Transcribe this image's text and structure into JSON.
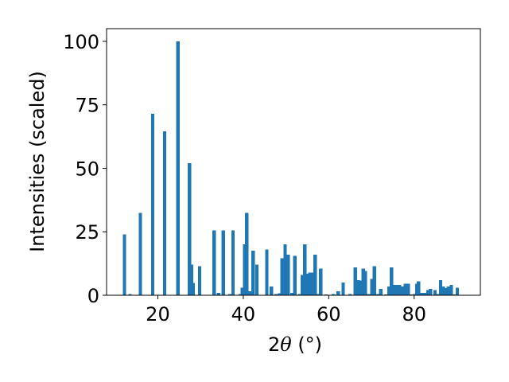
{
  "chart_data": {
    "type": "bar",
    "title": "",
    "xlabel_prefix": "2",
    "xlabel_symbol": "θ",
    "xlabel_suffix": " (°)",
    "ylabel": "Intensities (scaled)",
    "xlim": [
      8,
      95.5
    ],
    "ylim": [
      0,
      105
    ],
    "xticks": [
      20,
      40,
      60,
      80
    ],
    "yticks": [
      0,
      25,
      50,
      75,
      100
    ],
    "xtick_labels": [
      "20",
      "40",
      "60",
      "80"
    ],
    "ytick_labels": [
      "0",
      "25",
      "50",
      "75",
      "100"
    ],
    "bar_width": 0.8,
    "color": "#1f77b4",
    "grid": false,
    "x": [
      12.2,
      13.5,
      15.9,
      18.8,
      21.6,
      24.7,
      25.4,
      27.4,
      27.9,
      28.3,
      29.8,
      33.2,
      34.2,
      35.3,
      36.9,
      37.6,
      39.3,
      39.8,
      40.3,
      40.8,
      41.6,
      42.3,
      43.2,
      45.5,
      46.6,
      47.7,
      48.5,
      49.1,
      49.8,
      50.5,
      51.4,
      52.1,
      53.2,
      53.8,
      54.4,
      55.0,
      55.6,
      56.2,
      56.8,
      57.6,
      58.1,
      59.4,
      61.1,
      62.2,
      63.4,
      65.0,
      66.2,
      66.9,
      67.6,
      68.1,
      68.6,
      69.3,
      70.1,
      70.7,
      71.5,
      72.2,
      73.4,
      74.1,
      74.7,
      75.2,
      75.9,
      76.6,
      77.2,
      77.9,
      78.6,
      79.3,
      80.1,
      80.6,
      81.0,
      81.7,
      82.4,
      83.2,
      83.8,
      84.9,
      85.5,
      86.2,
      86.8,
      87.4,
      88.0,
      88.7,
      89.5,
      90.1
    ],
    "values": [
      24,
      0.5,
      32.5,
      71.5,
      64.5,
      100,
      0.2,
      52,
      12,
      4.8,
      11.5,
      25.5,
      1,
      25.5,
      0.5,
      25.5,
      0.4,
      3,
      20,
      32.5,
      1.5,
      17.5,
      12,
      18,
      3.5,
      0.4,
      0.8,
      14.5,
      20,
      16,
      1,
      15.5,
      0.5,
      8,
      20,
      8.5,
      9,
      9,
      16,
      0.5,
      10.5,
      0.3,
      0.4,
      1.5,
      5,
      0.5,
      11,
      6,
      5.8,
      10.5,
      9.5,
      0.4,
      6.5,
      11.5,
      0.5,
      2.5,
      0.3,
      3.5,
      11,
      4,
      4,
      4,
      3.5,
      4.5,
      4.5,
      0.3,
      0.4,
      4.5,
      5.5,
      1,
      1,
      2,
      2.5,
      2,
      0.5,
      6,
      3.5,
      2.8,
      3.5,
      4,
      0.3,
      3
    ]
  }
}
